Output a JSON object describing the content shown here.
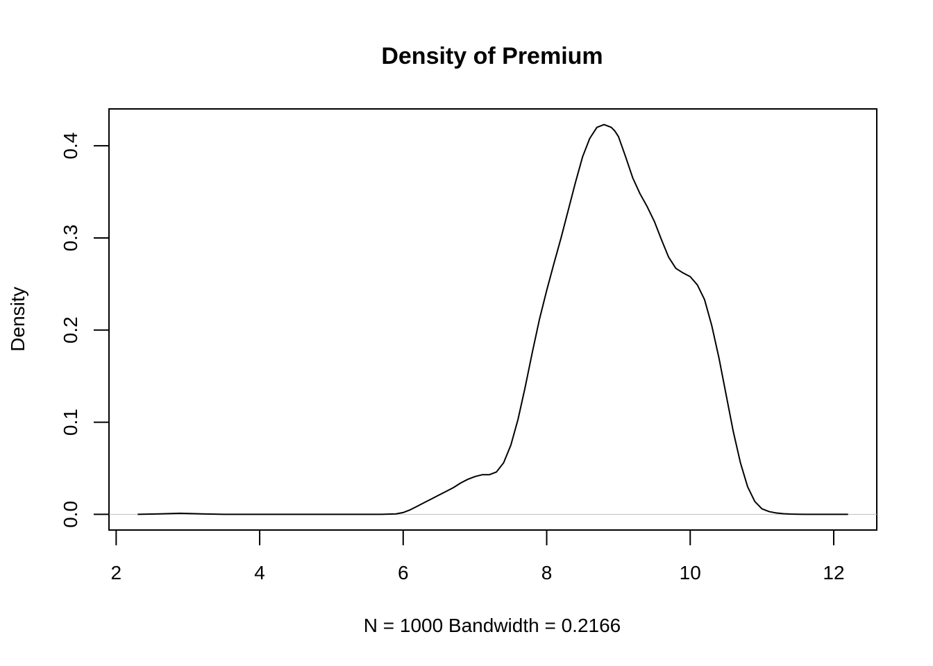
{
  "chart_data": {
    "type": "line",
    "title": "Density of Premium",
    "xlabel": "N = 1000   Bandwidth = 0.2166",
    "ylabel": "Density",
    "xlim": [
      1.9,
      12.6
    ],
    "ylim": [
      -0.017,
      0.44
    ],
    "xticks": [
      2,
      4,
      6,
      8,
      10,
      12
    ],
    "xtick_labels": [
      "2",
      "4",
      "6",
      "8",
      "10",
      "12"
    ],
    "yticks": [
      0.0,
      0.1,
      0.2,
      0.3,
      0.4
    ],
    "ytick_labels": [
      "0.0",
      "0.1",
      "0.2",
      "0.3",
      "0.4"
    ],
    "grid": false,
    "baseline": 0,
    "colors": {
      "line": "#000000",
      "baseline": "#bebebe",
      "frame": "#000000"
    },
    "series": [
      {
        "x": [
          2.3,
          2.6,
          2.9,
          3.2,
          3.5,
          4.0,
          5.0,
          5.7,
          5.9,
          6.0,
          6.1,
          6.2,
          6.3,
          6.4,
          6.5,
          6.6,
          6.7,
          6.8,
          6.9,
          7.0,
          7.1,
          7.2,
          7.3,
          7.4,
          7.5,
          7.6,
          7.7,
          7.8,
          7.9,
          8.0,
          8.1,
          8.2,
          8.3,
          8.4,
          8.5,
          8.6,
          8.7,
          8.8,
          8.9,
          8.95,
          9.0,
          9.1,
          9.2,
          9.3,
          9.4,
          9.5,
          9.6,
          9.7,
          9.8,
          9.9,
          10.0,
          10.1,
          10.2,
          10.3,
          10.4,
          10.5,
          10.6,
          10.7,
          10.8,
          10.9,
          11.0,
          11.1,
          11.2,
          11.3,
          11.4,
          11.5,
          11.6,
          11.7,
          11.8,
          11.9,
          12.0,
          12.2
        ],
        "y": [
          0.0,
          0.0005,
          0.0012,
          0.0005,
          0.0,
          0.0,
          0.0,
          0.0,
          0.0005,
          0.002,
          0.005,
          0.009,
          0.013,
          0.017,
          0.021,
          0.025,
          0.029,
          0.034,
          0.038,
          0.041,
          0.043,
          0.043,
          0.046,
          0.056,
          0.075,
          0.103,
          0.138,
          0.176,
          0.212,
          0.243,
          0.272,
          0.3,
          0.33,
          0.36,
          0.388,
          0.408,
          0.42,
          0.423,
          0.42,
          0.416,
          0.41,
          0.388,
          0.365,
          0.348,
          0.334,
          0.318,
          0.298,
          0.279,
          0.267,
          0.262,
          0.258,
          0.249,
          0.233,
          0.205,
          0.17,
          0.13,
          0.09,
          0.056,
          0.03,
          0.014,
          0.006,
          0.003,
          0.0015,
          0.0007,
          0.0003,
          0.0001,
          0.0,
          0.0,
          0.0,
          0.0,
          0.0,
          0.0
        ]
      }
    ]
  }
}
